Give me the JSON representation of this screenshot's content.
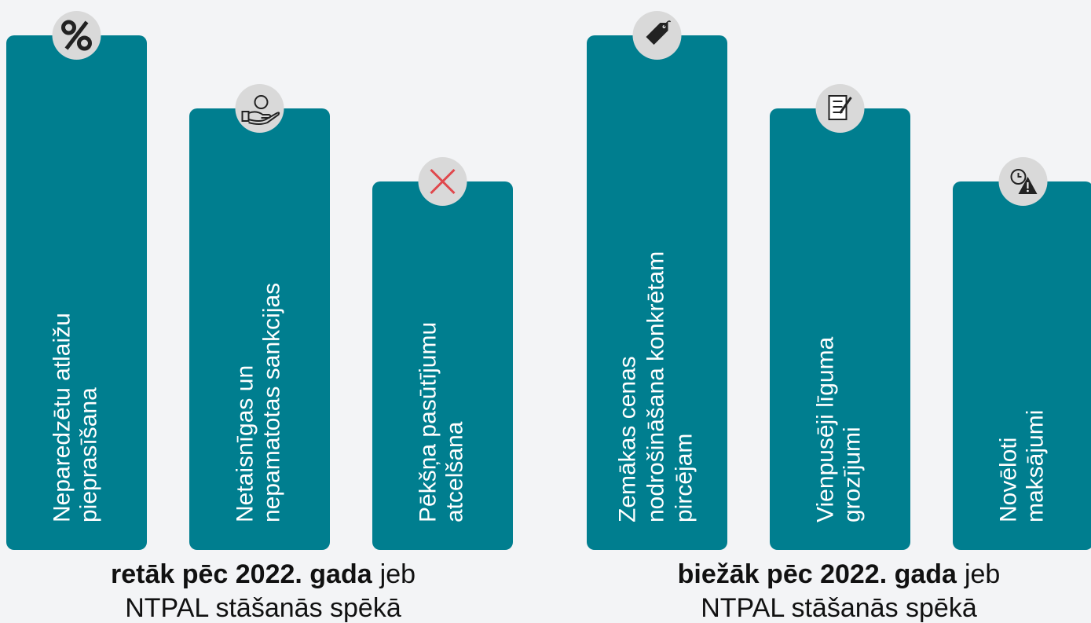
{
  "groups": [
    {
      "caption": {
        "bold": "retāk pēc 2022. gada",
        "rest": "jeb",
        "line2": "NTPAL stāšanās spēkā"
      },
      "bars": [
        {
          "lines": [
            "Neparedzētu atlaižu",
            "pieprasīšana"
          ]
        },
        {
          "lines": [
            "Netaisnīgas un",
            "nepamatotas sankcijas"
          ]
        },
        {
          "lines": [
            "Pēkšņa pasūtījumu",
            "atcelšana"
          ]
        }
      ]
    },
    {
      "caption": {
        "bold": "biežāk pēc 2022. gada",
        "rest": "jeb",
        "line2": "NTPAL stāšanās spēkā"
      },
      "bars": [
        {
          "lines": [
            "Zemākas cenas",
            "nodrošināšana konkrētam",
            "pircējam"
          ]
        },
        {
          "lines": [
            "Vienpusēji līguma",
            "grozījumi"
          ]
        },
        {
          "lines": [
            "Novēloti",
            "maksājumi"
          ]
        }
      ]
    }
  ]
}
